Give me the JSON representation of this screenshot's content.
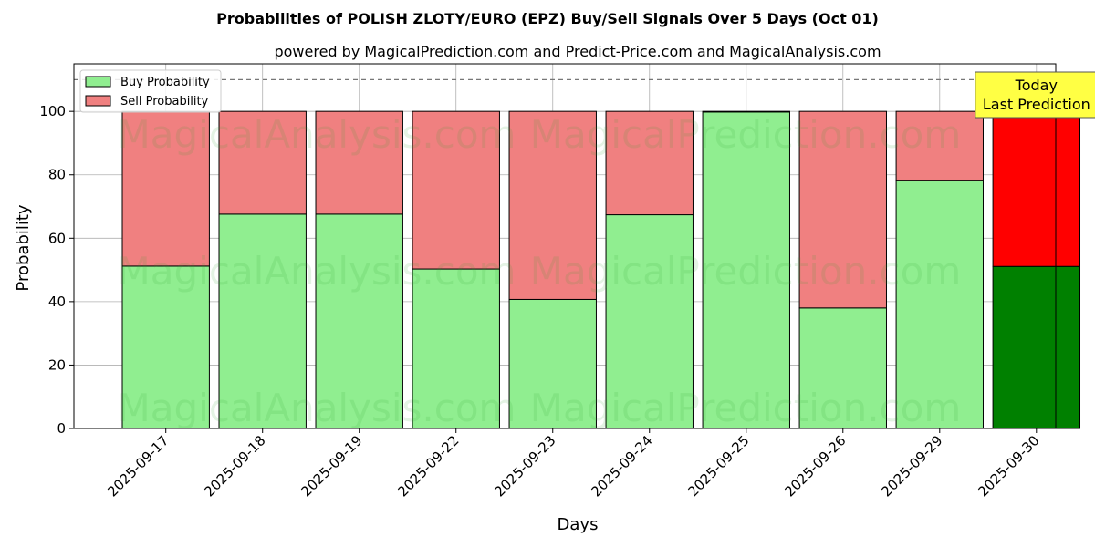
{
  "chart_data": {
    "type": "bar",
    "stacked": true,
    "title": "Probabilities of POLISH ZLOTY/EURO (EPZ) Buy/Sell Signals Over 5 Days (Oct 01)",
    "subtitle": "powered by MagicalPrediction.com and Predict-Price.com and MagicalAnalysis.com",
    "xlabel": "Days",
    "ylabel": "Probability",
    "ylim": [
      0,
      115
    ],
    "yticks": [
      0,
      20,
      40,
      60,
      80,
      100
    ],
    "reference_line": 110,
    "grid": true,
    "legend_position": "top-left",
    "categories": [
      "2025-09-17",
      "2025-09-18",
      "2025-09-19",
      "2025-09-22",
      "2025-09-23",
      "2025-09-24",
      "2025-09-25",
      "2025-09-26",
      "2025-09-29",
      "2025-09-30"
    ],
    "series": [
      {
        "name": "Buy Probability",
        "color": "#90ee90",
        "values": [
          51.2,
          67.6,
          67.6,
          50.3,
          40.7,
          67.4,
          99.8,
          38.0,
          78.3,
          51.1
        ]
      },
      {
        "name": "Sell Probability",
        "color": "#f08080",
        "values": [
          48.8,
          32.4,
          32.4,
          49.7,
          59.3,
          32.6,
          0.2,
          62.0,
          21.7,
          48.9
        ]
      }
    ],
    "highlight": {
      "category": "2025-09-30",
      "buy_color": "#008000",
      "sell_color": "#ff0000"
    },
    "annotation": {
      "lines": [
        "Today",
        "Last Prediction"
      ],
      "background": "#ffff44"
    },
    "watermarks": [
      "MagicalAnalysis.com",
      "MagicalPrediction.com"
    ]
  }
}
